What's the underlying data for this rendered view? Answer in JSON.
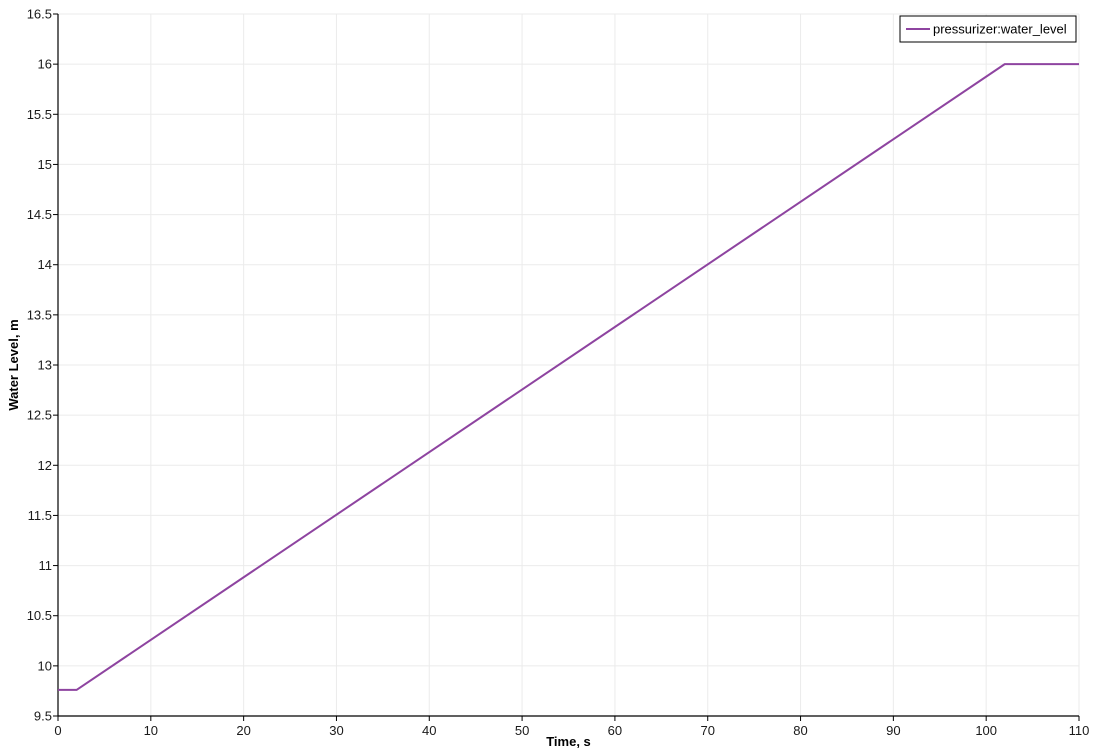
{
  "chart_data": {
    "type": "line",
    "title": "",
    "xlabel": "Time, s",
    "ylabel": "Water Level, m",
    "xlim": [
      0,
      110
    ],
    "ylim": [
      9.5,
      16.5
    ],
    "x_ticks": [
      0,
      10,
      20,
      30,
      40,
      50,
      60,
      70,
      80,
      90,
      100,
      110
    ],
    "x_tick_labels": [
      "0",
      "10",
      "20",
      "30",
      "40",
      "50",
      "60",
      "70",
      "80",
      "90",
      "100",
      "110"
    ],
    "y_ticks": [
      9.5,
      10,
      10.5,
      11,
      11.5,
      12,
      12.5,
      13,
      13.5,
      14,
      14.5,
      15,
      15.5,
      16,
      16.5
    ],
    "y_tick_labels": [
      "9.5",
      "10",
      "10.5",
      "11",
      "11.5",
      "12",
      "12.5",
      "13",
      "13.5",
      "14",
      "14.5",
      "15",
      "15.5",
      "16",
      "16.5"
    ],
    "grid": true,
    "legend_position": "top-right",
    "series": [
      {
        "name": "pressurizer:water_level",
        "color": "#8e44a0",
        "x": [
          0,
          2,
          102,
          110
        ],
        "y": [
          9.76,
          9.76,
          16.0,
          16.0
        ]
      }
    ]
  }
}
